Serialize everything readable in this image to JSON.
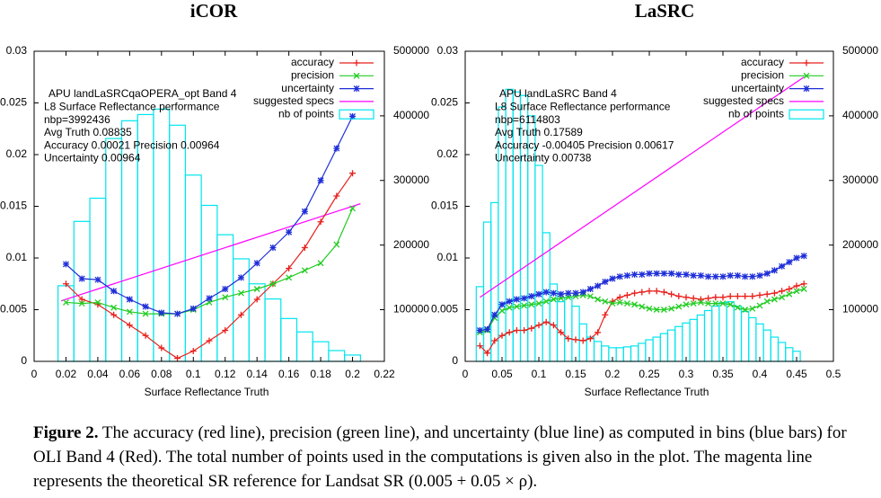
{
  "chart_data": [
    {
      "type": "line",
      "title": "iCOR",
      "xlabel": "Surface Reflectance Truth",
      "xlim": [
        0,
        0.22
      ],
      "ylim": [
        0,
        0.03
      ],
      "y2lim": [
        20000,
        500000
      ],
      "xticks": [
        0,
        0.02,
        0.04,
        0.06,
        0.08,
        0.1,
        0.12,
        0.14,
        0.16,
        0.18,
        0.2,
        0.22
      ],
      "yticks": [
        0,
        0.005,
        0.01,
        0.015,
        0.02,
        0.025,
        0.03
      ],
      "y2ticks": [
        100000,
        200000,
        300000,
        400000,
        500000
      ],
      "annotation": [
        "APU landLaSRCqaOPERA_opt Band 4",
        "L8 Surface Reflectance performance",
        "nbp=3992436",
        "Avg Truth 0.08835",
        "Accuracy 0.00021 Precision 0.00964",
        "Uncertainty 0.00964"
      ],
      "x": [
        0.02,
        0.03,
        0.04,
        0.05,
        0.06,
        0.07,
        0.08,
        0.09,
        0.1,
        0.11,
        0.12,
        0.13,
        0.14,
        0.15,
        0.16,
        0.17,
        0.18,
        0.19,
        0.2
      ],
      "series": [
        {
          "name": "accuracy",
          "color": "#e8201c",
          "marker": "plus",
          "values": [
            0.0075,
            0.006,
            0.0055,
            0.0045,
            0.0035,
            0.0025,
            0.0013,
            0.0003,
            0.001,
            0.002,
            0.003,
            0.0045,
            0.006,
            0.0075,
            0.009,
            0.011,
            0.0135,
            0.016,
            0.0182
          ]
        },
        {
          "name": "precision",
          "color": "#22cc22",
          "marker": "cross",
          "values": [
            0.0057,
            0.0056,
            0.0057,
            0.0052,
            0.0048,
            0.0046,
            0.0046,
            0.0046,
            0.005,
            0.0057,
            0.0062,
            0.0066,
            0.007,
            0.0075,
            0.0081,
            0.0088,
            0.0095,
            0.0113,
            0.0148
          ]
        },
        {
          "name": "uncertainty",
          "color": "#1f2fd8",
          "marker": "star",
          "values": [
            0.0094,
            0.008,
            0.0079,
            0.0068,
            0.006,
            0.0053,
            0.0047,
            0.0046,
            0.0051,
            0.0061,
            0.007,
            0.0081,
            0.0095,
            0.011,
            0.0125,
            0.0145,
            0.0175,
            0.0206,
            0.0237
          ]
        }
      ],
      "reference": {
        "name": "suggested specs",
        "color": "#ff00ff",
        "x": [
          0.017,
          0.205
        ],
        "values": [
          0.00585,
          0.01525
        ]
      },
      "histogram": {
        "name": "nb of points",
        "color": "#00e5ee",
        "axis": "y2",
        "bins": [
          0.015,
          0.025,
          0.035,
          0.045,
          0.055,
          0.065,
          0.075,
          0.085,
          0.095,
          0.105,
          0.115,
          0.125,
          0.135,
          0.145,
          0.155,
          0.165,
          0.175,
          0.185,
          0.195,
          0.205
        ],
        "counts": [
          137000,
          236600,
          272500,
          364900,
          392400,
          402000,
          410400,
          385500,
          308300,
          261400,
          216000,
          178700,
          140000,
          116600,
          86300,
          65600,
          50400,
          36700,
          29800
        ]
      }
    },
    {
      "type": "line",
      "title": "LaSRC",
      "xlabel": "Surface Reflectance Truth",
      "xlim": [
        0,
        0.5
      ],
      "ylim": [
        0,
        0.03
      ],
      "y2lim": [
        20000,
        500000
      ],
      "xticks": [
        0,
        0.05,
        0.1,
        0.15,
        0.2,
        0.25,
        0.3,
        0.35,
        0.4,
        0.45,
        0.5
      ],
      "yticks": [
        0,
        0.005,
        0.01,
        0.015,
        0.02,
        0.025,
        0.03
      ],
      "y2ticks": [
        100000,
        200000,
        300000,
        400000,
        500000
      ],
      "annotation": [
        "APU landLaSRC Band 4",
        "L8 Surface Reflectance performance",
        "nbp=6114803",
        "Avg Truth 0.17589",
        "Accuracy -0.00405 Precision 0.00617",
        "Uncertainty 0.00738"
      ],
      "x": [
        0.02,
        0.03,
        0.04,
        0.05,
        0.06,
        0.07,
        0.08,
        0.09,
        0.1,
        0.11,
        0.12,
        0.13,
        0.14,
        0.15,
        0.16,
        0.17,
        0.18,
        0.19,
        0.2,
        0.21,
        0.22,
        0.23,
        0.24,
        0.25,
        0.26,
        0.27,
        0.28,
        0.29,
        0.3,
        0.31,
        0.32,
        0.33,
        0.34,
        0.35,
        0.36,
        0.37,
        0.38,
        0.39,
        0.4,
        0.41,
        0.42,
        0.43,
        0.44,
        0.45,
        0.46
      ],
      "series": [
        {
          "name": "accuracy",
          "color": "#e8201c",
          "marker": "plus",
          "values": [
            0.0015,
            0.0008,
            0.002,
            0.0025,
            0.0028,
            0.003,
            0.003,
            0.0032,
            0.0035,
            0.0038,
            0.0035,
            0.0028,
            0.0022,
            0.0021,
            0.002,
            0.0022,
            0.0028,
            0.0045,
            0.0058,
            0.0062,
            0.0064,
            0.0066,
            0.0067,
            0.0068,
            0.0068,
            0.0067,
            0.0065,
            0.0063,
            0.0062,
            0.0061,
            0.006,
            0.0061,
            0.0062,
            0.0062,
            0.0063,
            0.0063,
            0.0063,
            0.0063,
            0.0064,
            0.0065,
            0.0066,
            0.0068,
            0.007,
            0.0073,
            0.0075
          ]
        },
        {
          "name": "precision",
          "color": "#22cc22",
          "marker": "cross",
          "values": [
            0.0028,
            0.003,
            0.0042,
            0.0049,
            0.0052,
            0.0053,
            0.0054,
            0.0055,
            0.0056,
            0.0058,
            0.006,
            0.0061,
            0.0062,
            0.0063,
            0.0064,
            0.0063,
            0.006,
            0.0058,
            0.0056,
            0.0057,
            0.0056,
            0.0055,
            0.0053,
            0.0051,
            0.005,
            0.005,
            0.0051,
            0.0053,
            0.0055,
            0.0056,
            0.0057,
            0.0056,
            0.0056,
            0.0056,
            0.0055,
            0.0052,
            0.005,
            0.0051,
            0.0054,
            0.0058,
            0.006,
            0.0062,
            0.0065,
            0.0068,
            0.007
          ]
        },
        {
          "name": "uncertainty",
          "color": "#1f2fd8",
          "marker": "star",
          "values": [
            0.003,
            0.0031,
            0.0045,
            0.0055,
            0.0058,
            0.006,
            0.0061,
            0.0063,
            0.0065,
            0.0067,
            0.0066,
            0.0065,
            0.0066,
            0.0066,
            0.0067,
            0.007,
            0.0073,
            0.0077,
            0.008,
            0.0082,
            0.0083,
            0.0084,
            0.0084,
            0.0085,
            0.0085,
            0.0085,
            0.0085,
            0.0084,
            0.0084,
            0.0083,
            0.0083,
            0.0082,
            0.0082,
            0.0082,
            0.0083,
            0.0083,
            0.0082,
            0.0082,
            0.0083,
            0.0085,
            0.0088,
            0.0092,
            0.0096,
            0.01,
            0.0102
          ]
        }
      ],
      "reference": {
        "name": "suggested specs",
        "color": "#ff00ff",
        "x": [
          0.02,
          0.46
        ],
        "values": [
          0.0062,
          0.0275
        ]
      },
      "histogram": {
        "name": "nb of points",
        "color": "#00e5ee",
        "axis": "y2",
        "bins": [
          0.015,
          0.025,
          0.035,
          0.045,
          0.055,
          0.065,
          0.075,
          0.085,
          0.095,
          0.105,
          0.115,
          0.125,
          0.135,
          0.145,
          0.155,
          0.165,
          0.175,
          0.185,
          0.195,
          0.205,
          0.215,
          0.225,
          0.235,
          0.245,
          0.255,
          0.265,
          0.275,
          0.285,
          0.295,
          0.305,
          0.315,
          0.325,
          0.335,
          0.345,
          0.355,
          0.365,
          0.375,
          0.385,
          0.395,
          0.405,
          0.415,
          0.425,
          0.435,
          0.445,
          0.455
        ],
        "counts": [
          135600,
          235600,
          265700,
          413700,
          441100,
          437000,
          431500,
          400000,
          323300,
          219100,
          139700,
          112300,
          119100,
          105400,
          78000,
          57500,
          50700,
          43800,
          41100,
          41100,
          42400,
          43800,
          47900,
          53400,
          57500,
          63000,
          68500,
          73900,
          79400,
          84900,
          91700,
          98600,
          105400,
          110900,
          112300,
          105400,
          97200,
          87600,
          78000,
          68500,
          57500,
          49300,
          41100,
          35600
        ]
      }
    }
  ],
  "caption": {
    "label": "Figure 2.",
    "text": "The accuracy (red line), precision (green line), and uncertainty (blue line) as computed in bins (blue bars) for OLI Band 4 (Red). The total number of points used in the computations is given also in the plot. The magenta line represents the theoretical SR reference for Landsat SR (0.005 + 0.05 × ρ)."
  }
}
